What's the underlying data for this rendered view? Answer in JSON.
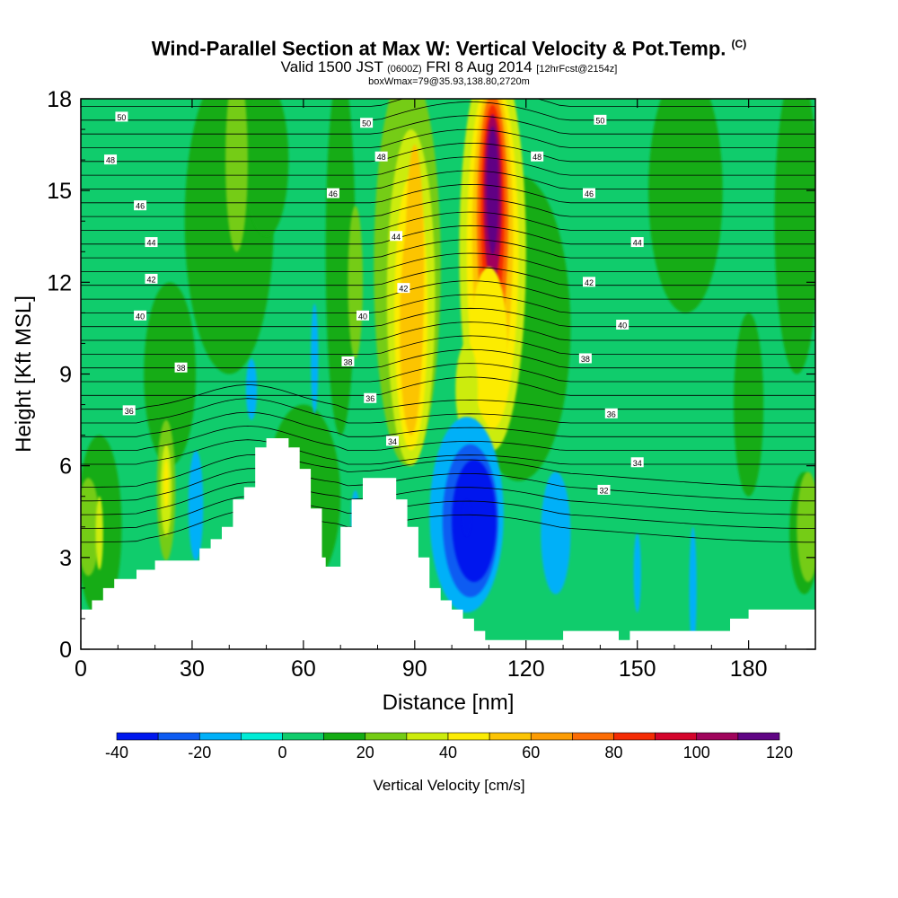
{
  "header": {
    "title": "Wind-Parallel Section at Max W: Vertical Velocity & Pot.Temp.",
    "copyright": "(C)",
    "valid_prefix": "Valid 1500 JST",
    "valid_utc": "(0600Z)",
    "valid_date": "FRI 8 Aug 2014",
    "forecast": "[12hrFcst@2154z]",
    "box_info": "boxWmax=79@35.93,138.80,2720m"
  },
  "chart_data": {
    "type": "heatmap",
    "description_series": "Vertical Velocity [cm/s] filled contours with potential temperature isolines",
    "xlabel": "Distance [nm]",
    "ylabel": "Height [Kft MSL]",
    "xlim": [
      0,
      198
    ],
    "ylim": [
      0,
      18
    ],
    "xticks": [
      "0",
      "30",
      "60",
      "90",
      "120",
      "150",
      "180"
    ],
    "yticks": [
      "0",
      "3",
      "6",
      "9",
      "12",
      "15",
      "18"
    ],
    "colorbar": {
      "title": "Vertical Velocity [cm/s]",
      "levels": [
        -40,
        -30,
        -20,
        -10,
        0,
        10,
        20,
        30,
        40,
        50,
        60,
        70,
        80,
        90,
        100,
        110,
        120
      ],
      "tick_labels": [
        "-40",
        "-20",
        "0",
        "20",
        "40",
        "60",
        "80",
        "100",
        "120"
      ],
      "colors": [
        "#0018ee",
        "#0e5cf2",
        "#00b0f8",
        "#00ecd6",
        "#10cc6c",
        "#14ac14",
        "#74cc14",
        "#ccec0c",
        "#fcec04",
        "#fcc404",
        "#fc9c04",
        "#fc6c04",
        "#f42c04",
        "#d4042c",
        "#a0045c",
        "#600484"
      ]
    },
    "contour_labels": [
      {
        "text": "50",
        "x": 11,
        "y": 17.4
      },
      {
        "text": "48",
        "x": 8,
        "y": 16.0
      },
      {
        "text": "46",
        "x": 16,
        "y": 14.5
      },
      {
        "text": "44",
        "x": 19,
        "y": 13.3
      },
      {
        "text": "42",
        "x": 19,
        "y": 12.1
      },
      {
        "text": "40",
        "x": 16,
        "y": 10.9
      },
      {
        "text": "38",
        "x": 27,
        "y": 9.2
      },
      {
        "text": "36",
        "x": 13,
        "y": 7.8
      },
      {
        "text": "50",
        "x": 77,
        "y": 17.2
      },
      {
        "text": "48",
        "x": 81,
        "y": 16.1
      },
      {
        "text": "46",
        "x": 68,
        "y": 14.9
      },
      {
        "text": "44",
        "x": 85,
        "y": 13.5
      },
      {
        "text": "42",
        "x": 87,
        "y": 11.8
      },
      {
        "text": "40",
        "x": 76,
        "y": 10.9
      },
      {
        "text": "38",
        "x": 72,
        "y": 9.4
      },
      {
        "text": "36",
        "x": 78,
        "y": 8.2
      },
      {
        "text": "34",
        "x": 84,
        "y": 6.8
      },
      {
        "text": "50",
        "x": 140,
        "y": 17.3
      },
      {
        "text": "48",
        "x": 123,
        "y": 16.1
      },
      {
        "text": "46",
        "x": 137,
        "y": 14.9
      },
      {
        "text": "44",
        "x": 150,
        "y": 13.3
      },
      {
        "text": "42",
        "x": 137,
        "y": 12.0
      },
      {
        "text": "40",
        "x": 146,
        "y": 10.6
      },
      {
        "text": "38",
        "x": 136,
        "y": 9.5
      },
      {
        "text": "36",
        "x": 143,
        "y": 7.7
      },
      {
        "text": "34",
        "x": 150,
        "y": 6.1
      },
      {
        "text": "32",
        "x": 141,
        "y": 5.2
      }
    ],
    "features": [
      {
        "label": "updraft core",
        "x_center": 111,
        "w_max": 120,
        "height_range": [
          9,
          18
        ]
      },
      {
        "label": "broad updraft",
        "x_center": 89,
        "w_max": 60,
        "height_range": [
          7,
          18
        ]
      },
      {
        "label": "downdraft",
        "x_center": 104,
        "w_min": -40,
        "height_range": [
          2,
          7
        ]
      }
    ],
    "terrain_kft": {
      "x": [
        0,
        3,
        6,
        9,
        12,
        15,
        17,
        20,
        23,
        26,
        29,
        32,
        35,
        38,
        41,
        44,
        47,
        50,
        53,
        56,
        59,
        62,
        65,
        66,
        68,
        70,
        73,
        76,
        79,
        82,
        85,
        88,
        91,
        94,
        97,
        100,
        103,
        106,
        109,
        112,
        115,
        118,
        121,
        124,
        127,
        130,
        133,
        136,
        139,
        142,
        145,
        148,
        151,
        155,
        160,
        165,
        170,
        175,
        180,
        185,
        190,
        198
      ],
      "y": [
        1.3,
        1.6,
        2.0,
        2.3,
        2.3,
        2.6,
        2.6,
        2.9,
        2.9,
        2.9,
        2.9,
        3.3,
        3.6,
        4.0,
        4.9,
        5.3,
        6.6,
        6.9,
        6.9,
        6.6,
        5.9,
        4.6,
        3.0,
        2.7,
        2.7,
        4.0,
        4.9,
        5.6,
        5.6,
        5.6,
        4.9,
        4.0,
        3.0,
        2.0,
        1.6,
        1.3,
        1.0,
        0.6,
        0.3,
        0.3,
        0.3,
        0.3,
        0.3,
        0.3,
        0.3,
        0.6,
        0.6,
        0.6,
        0.6,
        0.6,
        0.3,
        0.6,
        0.6,
        0.6,
        0.6,
        0.6,
        0.6,
        1.0,
        1.3,
        1.3,
        1.3,
        1.3
      ]
    }
  }
}
